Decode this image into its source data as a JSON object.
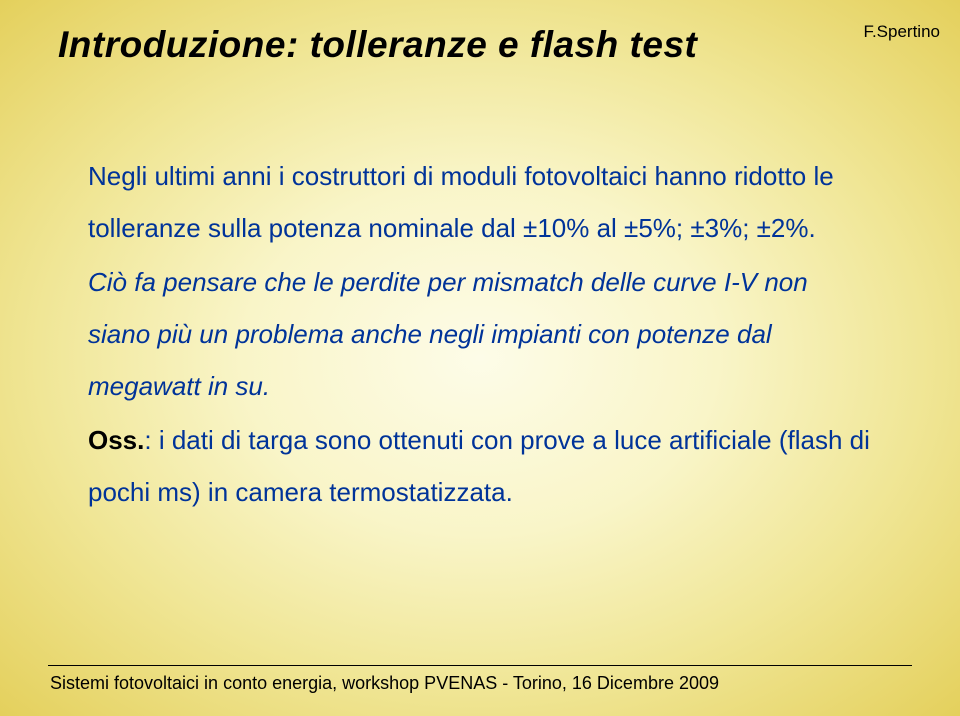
{
  "slide": {
    "title": "Introduzione: tolleranze e flash test",
    "author": "F.Spertino",
    "para1": "Negli ultimi anni i costruttori di moduli fotovoltaici hanno ridotto le tolleranze sulla potenza nominale dal ±10% al ±5%; ±3%; ±2%.",
    "para2": "Ciò fa pensare che le perdite per mismatch delle curve I-V non siano più un problema anche negli impianti con potenze dal megawatt in su.",
    "oss_label": "Oss.",
    "oss_text": ": i dati di targa sono ottenuti con prove a luce artificiale (flash di pochi ms) in camera termostatizzata.",
    "footer": "Sistemi fotovoltaici in conto energia, workshop PVENAS - Torino, 16 Dicembre 2009",
    "colors": {
      "body_text": "#003399",
      "title_text": "#000000",
      "bg_center": "#fdfce8",
      "bg_edge": "#e4d05c"
    },
    "fontsize": {
      "title": 37,
      "body": 26,
      "author": 17,
      "footer": 18
    }
  }
}
